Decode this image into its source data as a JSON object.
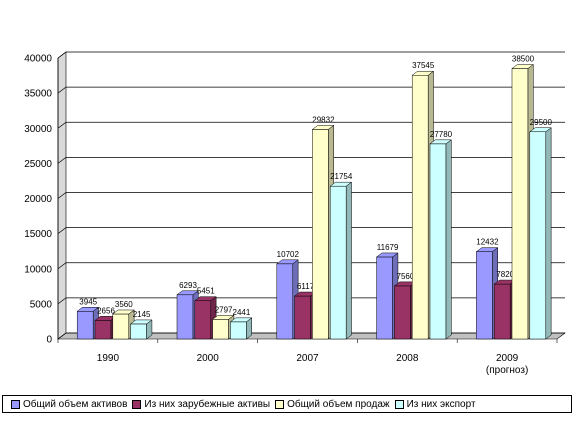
{
  "chart_data": {
    "type": "bar",
    "categories": [
      [
        "1990"
      ],
      [
        "2000"
      ],
      [
        "2007"
      ],
      [
        "2008"
      ],
      [
        "2009",
        "(прогноз)"
      ]
    ],
    "series": [
      {
        "name": "Общий объем активов",
        "values": [
          3945,
          6293,
          10702,
          11679,
          12432
        ],
        "labels": [
          "3945",
          "6293",
          "10702",
          "11679",
          "12432"
        ],
        "color": "#9999FF"
      },
      {
        "name": "Из них зарубежные активы",
        "values": [
          2656,
          5451,
          6117,
          7560,
          7820
        ],
        "labels": [
          "2656",
          "5451",
          "6117",
          "7560",
          "7820"
        ],
        "color": "#993366"
      },
      {
        "name": "Общий объем продаж",
        "values": [
          3560,
          2797,
          29832,
          37545,
          38500
        ],
        "labels": [
          "3560",
          "2797",
          "29832",
          "37545",
          "38500"
        ],
        "color": "#FFFFCC"
      },
      {
        "name": "Из них экспорт",
        "values": [
          2145,
          2441,
          21754,
          27780,
          29500
        ],
        "labels": [
          "2145",
          "2441",
          "21754",
          "27780",
          "29500"
        ],
        "color": "#CCFFFF"
      }
    ],
    "y_ticks": [
      "0",
      "5000",
      "10000",
      "15000",
      "20000",
      "25000",
      "30000",
      "35000",
      "40000"
    ],
    "ylim": [
      0,
      40000
    ],
    "title": "",
    "xlabel": "",
    "ylabel": "",
    "grid": true,
    "legend_position": "bottom",
    "three_d": true
  }
}
